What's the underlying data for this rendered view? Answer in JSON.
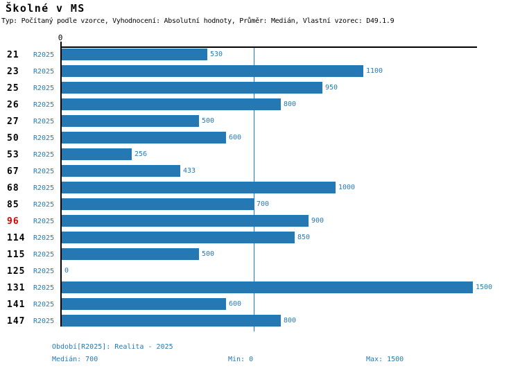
{
  "header": {
    "title": "Školné v MS",
    "subtitle": "Typ: Počítaný podle vzorce, Vyhodnocení: Absolutní hodnoty, Průměr: Medián, Vlastní vzorec: D49.1.9"
  },
  "axis": {
    "zero_label": "0"
  },
  "chart_data": {
    "type": "bar",
    "orientation": "horizontal",
    "title": "Školné v MS",
    "categories": [
      "21",
      "23",
      "25",
      "26",
      "27",
      "50",
      "53",
      "67",
      "68",
      "85",
      "96",
      "114",
      "115",
      "125",
      "131",
      "141",
      "147"
    ],
    "series": [
      {
        "name": "R2025",
        "values": [
          530,
          1100,
          950,
          800,
          500,
          600,
          256,
          433,
          1000,
          700,
          900,
          850,
          500,
          0,
          1500,
          600,
          800
        ]
      }
    ],
    "xlim": [
      0,
      1515
    ],
    "median_line": 700,
    "highlighted_category": "96",
    "value_labels": true,
    "grid": false,
    "legend": "none"
  },
  "footer": {
    "period_label": "Období[R2025]: Realita - 2025",
    "median_label": "Medián: 700",
    "min_label": "Min: 0",
    "max_label": "Max: 1500"
  },
  "colors": {
    "bar": "#2478b4",
    "blue_text": "#2478b4",
    "highlight": "#dd0000",
    "axis": "#000000",
    "background": "#ffffff"
  }
}
